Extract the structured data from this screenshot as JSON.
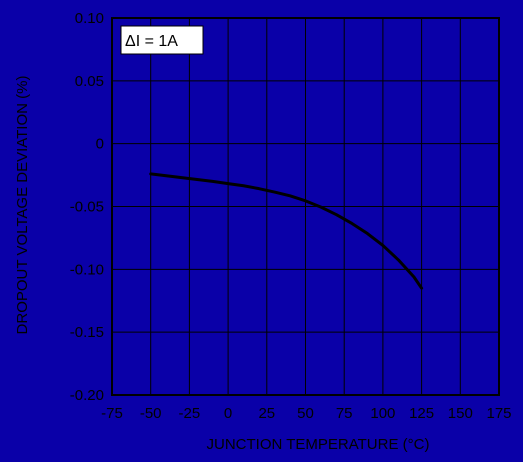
{
  "chart_data": {
    "type": "line",
    "title": "",
    "xlabel": "JUNCTION TEMPERATURE (°C)",
    "ylabel": "DROPOUT VOLTAGE DEVIATION (%)",
    "xlim": [
      -75,
      175
    ],
    "ylim": [
      -0.2,
      0.1
    ],
    "x_ticks": [
      "-75",
      "-50",
      "-25",
      "0",
      "25",
      "50",
      "75",
      "100",
      "125",
      "150",
      "175"
    ],
    "y_ticks": [
      "0.10",
      "0.05",
      "0",
      "-0.05",
      "-0.10",
      "-0.15",
      "-0.20"
    ],
    "grid": true,
    "annotation": "ΔI = 1A",
    "colors": {
      "background": "#0a00a8",
      "grid": "#000000",
      "line": "#000000",
      "annotation_box": "#ffffff"
    },
    "series": [
      {
        "x": [
          -50,
          -40,
          -30,
          -20,
          -10,
          0,
          10,
          20,
          30,
          40,
          50,
          60,
          70,
          80,
          90,
          100,
          110,
          120,
          125
        ],
        "values": [
          -0.024,
          -0.0255,
          -0.027,
          -0.0285,
          -0.03,
          -0.0318,
          -0.0335,
          -0.0358,
          -0.0385,
          -0.0415,
          -0.0455,
          -0.0505,
          -0.0565,
          -0.0635,
          -0.0715,
          -0.081,
          -0.0925,
          -0.106,
          -0.115
        ]
      }
    ]
  }
}
